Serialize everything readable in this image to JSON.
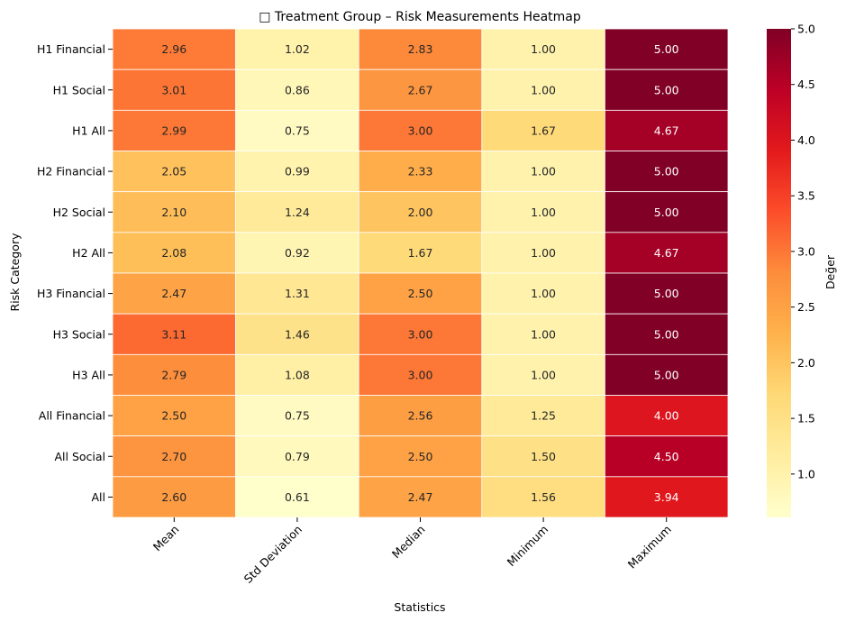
{
  "chart_data": {
    "type": "heatmap",
    "title": "□ Treatment Group – Risk Measurements Heatmap",
    "xlabel": "Statistics",
    "ylabel": "Risk Category",
    "columns": [
      "Mean",
      "Std Deviation",
      "Median",
      "Minimum",
      "Maximum"
    ],
    "rows": [
      "H1 Financial",
      "H1 Social",
      "H1 All",
      "H2 Financial",
      "H2 Social",
      "H2 All",
      "H3 Financial",
      "H3 Social",
      "H3 All",
      "All Financial",
      "All Social",
      "All"
    ],
    "values": [
      [
        2.96,
        1.02,
        2.83,
        1.0,
        5.0
      ],
      [
        3.01,
        0.86,
        2.67,
        1.0,
        5.0
      ],
      [
        2.99,
        0.75,
        3.0,
        1.67,
        4.67
      ],
      [
        2.05,
        0.99,
        2.33,
        1.0,
        5.0
      ],
      [
        2.1,
        1.24,
        2.0,
        1.0,
        5.0
      ],
      [
        2.08,
        0.92,
        1.67,
        1.0,
        4.67
      ],
      [
        2.47,
        1.31,
        2.5,
        1.0,
        5.0
      ],
      [
        3.11,
        1.46,
        3.0,
        1.0,
        5.0
      ],
      [
        2.79,
        1.08,
        3.0,
        1.0,
        5.0
      ],
      [
        2.5,
        0.75,
        2.56,
        1.25,
        4.0
      ],
      [
        2.7,
        0.79,
        2.5,
        1.5,
        4.5
      ],
      [
        2.6,
        0.61,
        2.47,
        1.56,
        3.94
      ]
    ],
    "value_format_decimals": 2,
    "colormap": "YlOrRd",
    "colorbar": {
      "label": "Değer",
      "range": [
        0.61,
        5.0
      ],
      "ticks": [
        1.0,
        1.5,
        2.0,
        2.5,
        3.0,
        3.5,
        4.0,
        4.5,
        5.0
      ]
    },
    "colors": {
      "stops": [
        "#ffffcc",
        "#ffeda0",
        "#fed976",
        "#feb24c",
        "#fd8d3c",
        "#fc4e2a",
        "#e31a1c",
        "#bd0026",
        "#800026"
      ],
      "cell_border": "#ffffff",
      "text_dark": "#262626",
      "text_light": "#ffffff"
    }
  }
}
